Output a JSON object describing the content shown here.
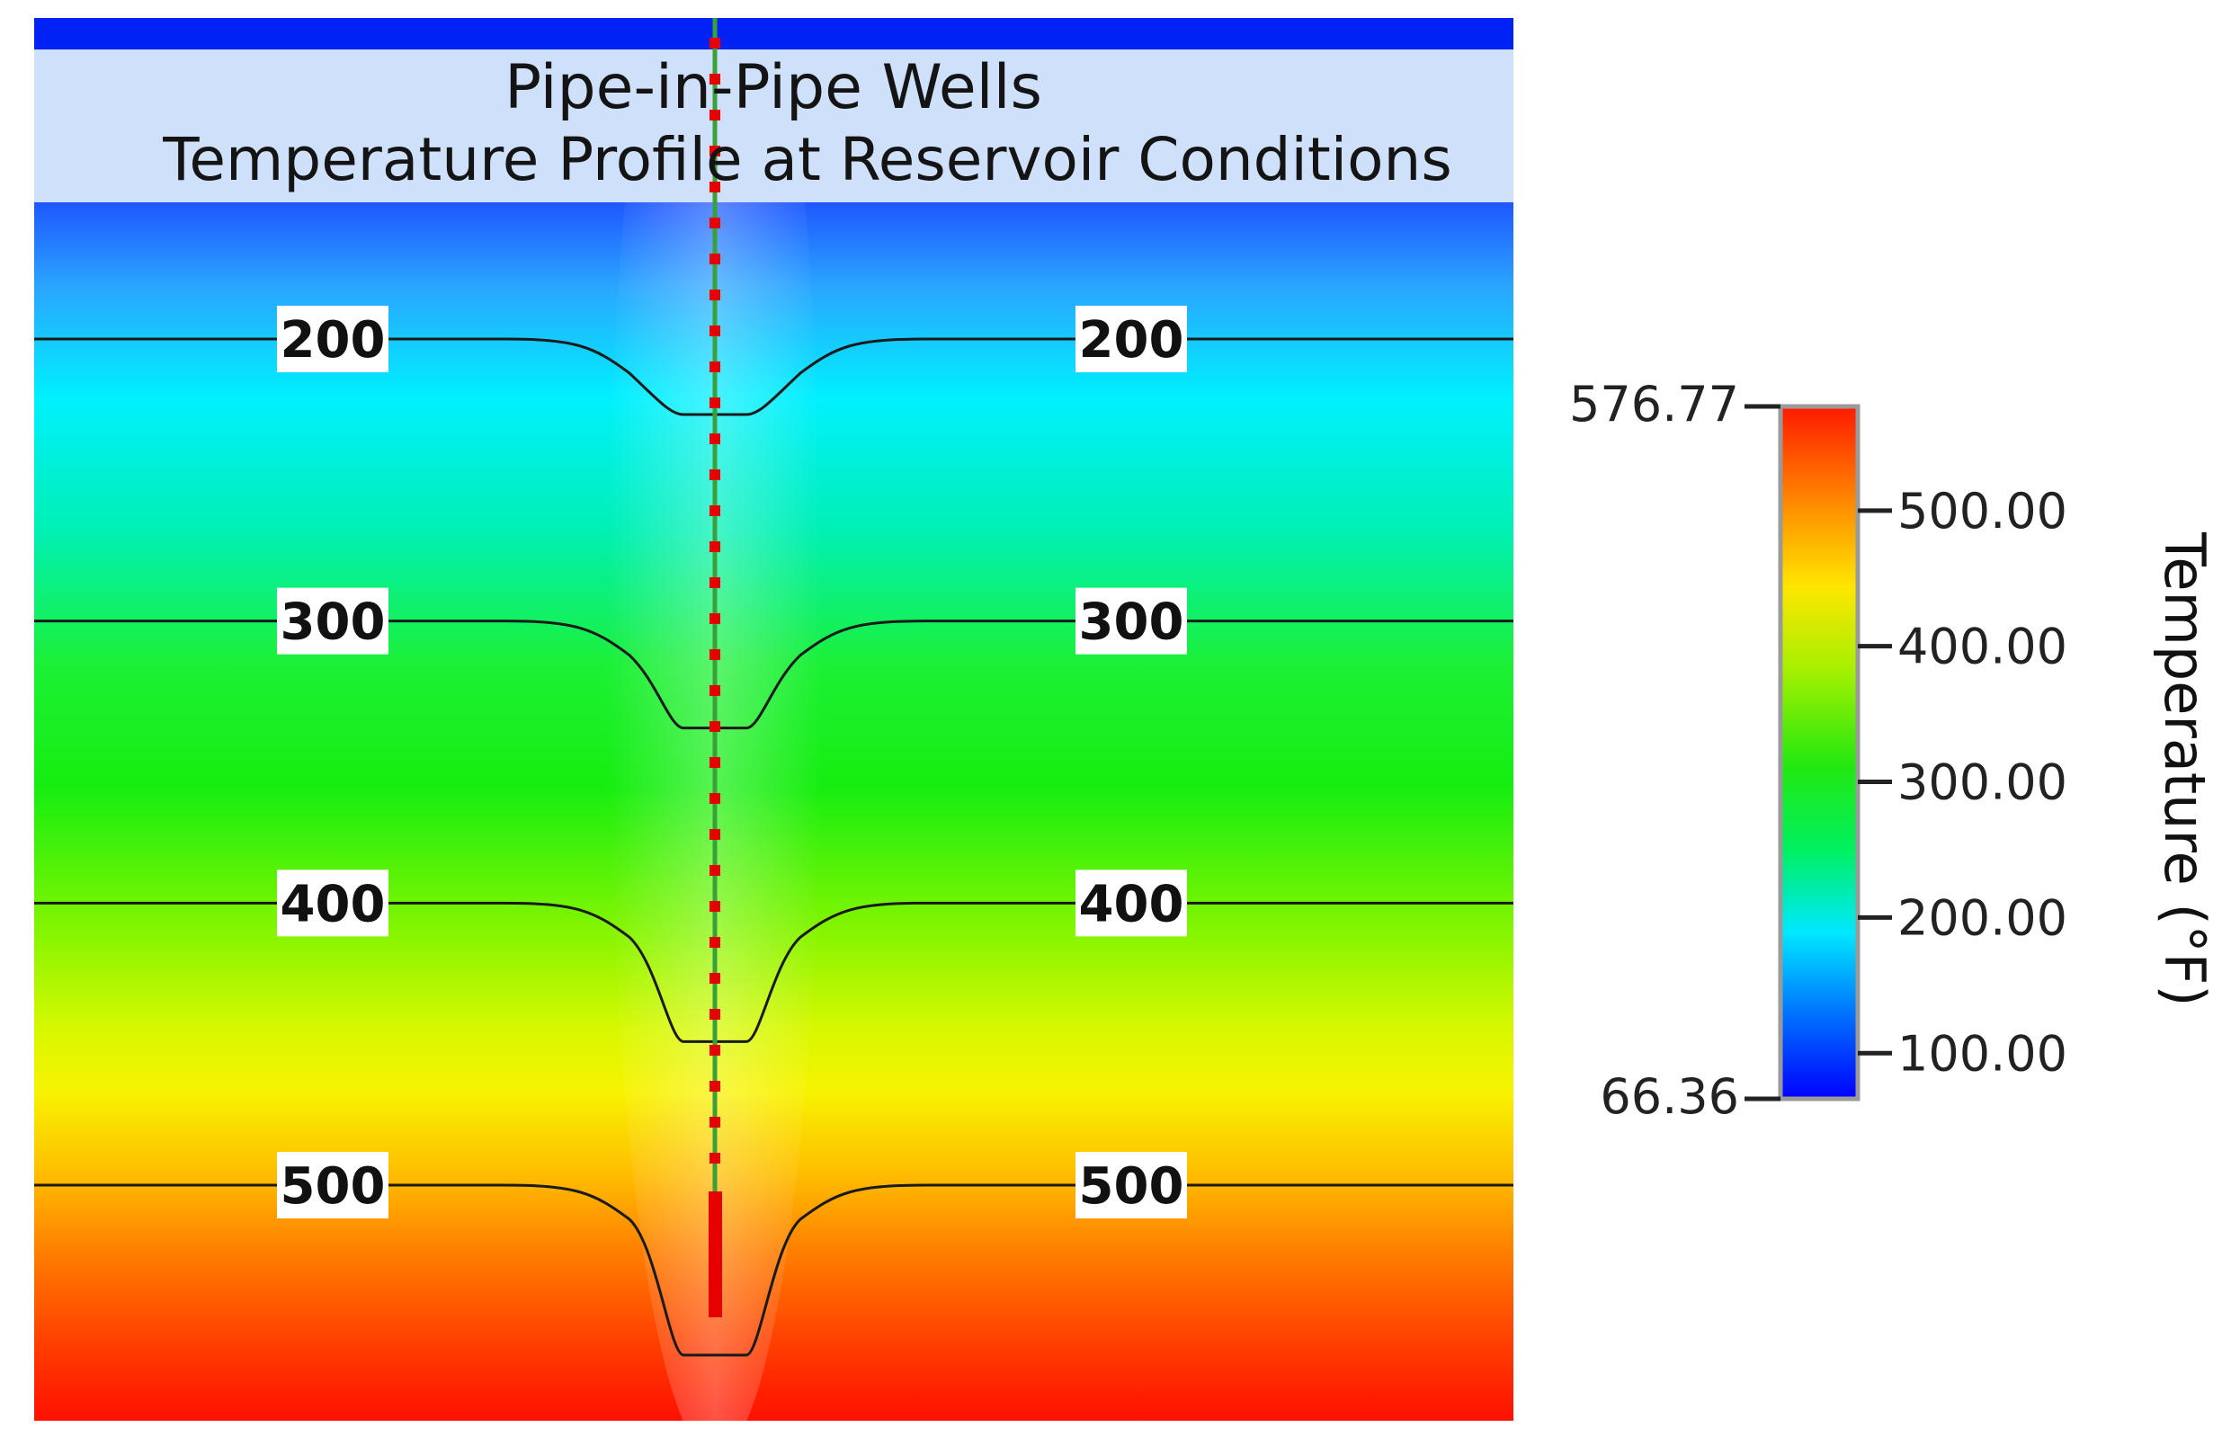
{
  "chart_data": {
    "type": "heatmap",
    "title": "Pipe-in-Pipe Wells",
    "subtitle": "Temperature Profile at Reservoir Conditions",
    "colorbar": {
      "label": "Temperature (°F)",
      "min": 66.36,
      "max": 576.77,
      "min_label": "66.36",
      "max_label": "576.77",
      "ticks": [
        {
          "value": 500,
          "label": "500.00"
        },
        {
          "value": 400,
          "label": "400.00"
        },
        {
          "value": 300,
          "label": "300.00"
        },
        {
          "value": 200,
          "label": "200.00"
        },
        {
          "value": 100,
          "label": "100.00"
        }
      ]
    },
    "contours": [
      {
        "value": 200,
        "label": "200"
      },
      {
        "value": 300,
        "label": "300"
      },
      {
        "value": 400,
        "label": "400"
      },
      {
        "value": 500,
        "label": "500"
      }
    ]
  }
}
